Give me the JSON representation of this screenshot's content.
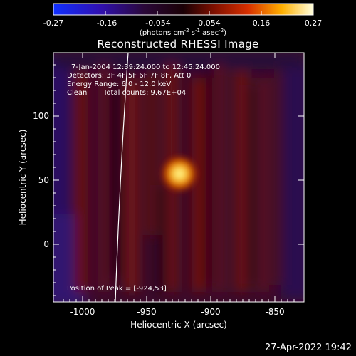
{
  "colorbar": {
    "tick_labels": [
      "-0.27",
      "-0.16",
      "-0.054",
      "0.054",
      "0.16",
      "0.27"
    ],
    "units_text": "(photons cm",
    "units_exp1": "-2",
    "units_mid": " s",
    "units_exp2": "-1",
    "units_end": " asec",
    "units_exp3": "-2",
    "units_close": ")"
  },
  "plot": {
    "title": "Reconstructed RHESSI Image",
    "info_line1": "7-Jan-2004 12:39:24.000 to 12:45:24.000",
    "info_line2": "Detectors: 3F 4F 5F 6F 7F 8F, Att 0",
    "info_line3": "Energy Range: 6.0 - 12.0 keV",
    "info_line4_a": "Clean",
    "info_line4_b": "Total counts: 9.67E+04",
    "peak_text": "Position of Peak = [-924,53]",
    "x_tick_labels": [
      "-1000",
      "-950",
      "-900",
      "-850"
    ],
    "y_tick_labels": [
      "100",
      "50",
      "0"
    ],
    "xlabel": "Heliocentric X (arcsec)",
    "ylabel": "Heliocentric Y (arcsec)"
  },
  "footer": {
    "timestamp": "27-Apr-2022 19:42"
  }
}
